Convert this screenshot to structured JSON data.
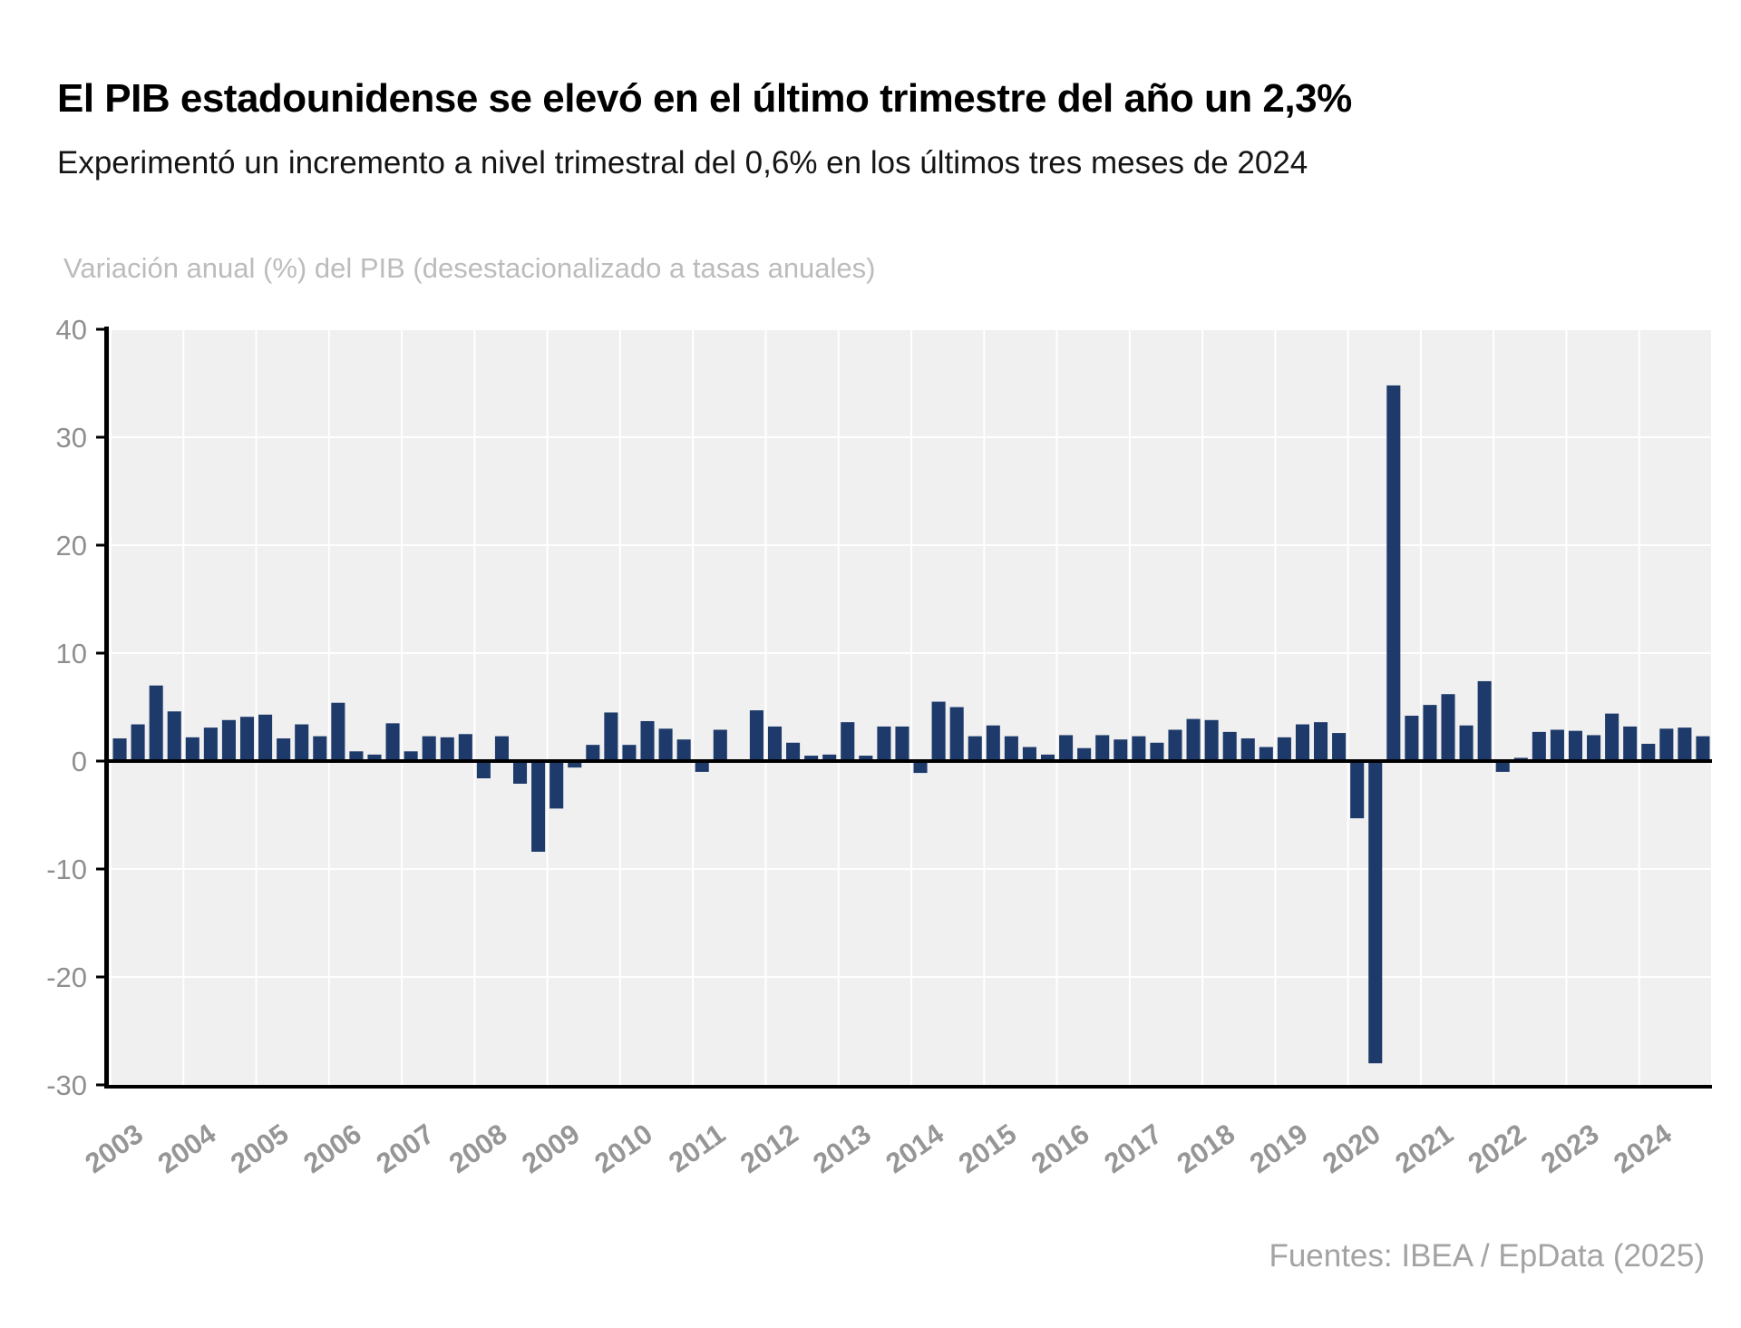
{
  "chart_data": {
    "type": "bar",
    "title": "El PIB estadounidense se elevó en el último trimestre del año un 2,3%",
    "subtitle": "Experimentó un incremento a nivel trimestral del 0,6% en los últimos tres meses de 2024",
    "axis_label": "Variación anual (%) del PIB (desestacionalizado a tasas anuales)",
    "source": "Fuentes: IBEA / EpData (2025)",
    "ylim": [
      -30,
      40
    ],
    "yticks": [
      40,
      30,
      20,
      10,
      0,
      -10,
      -20,
      -30
    ],
    "bar_color": "#1e3a6b",
    "plot_bg": "#f0f0f0",
    "grid_color": "#ffffff",
    "axis_color": "#000000",
    "ytick_label_color": "#8f8f8f",
    "xtick_label_color": "#969696",
    "years": [
      "2003",
      "2004",
      "2005",
      "2006",
      "2007",
      "2008",
      "2009",
      "2010",
      "2011",
      "2012",
      "2013",
      "2014",
      "2015",
      "2016",
      "2017",
      "2018",
      "2019",
      "2020",
      "2021",
      "2022",
      "2023",
      "2024"
    ],
    "quarters_per_year": 4,
    "values": [
      2.1,
      3.4,
      7.0,
      4.6,
      2.2,
      3.1,
      3.8,
      4.1,
      4.3,
      2.1,
      3.4,
      2.3,
      5.4,
      0.9,
      0.6,
      3.5,
      0.9,
      2.3,
      2.2,
      2.5,
      -1.6,
      2.3,
      -2.1,
      -8.4,
      -4.4,
      -0.6,
      1.5,
      4.5,
      1.5,
      3.7,
      3.0,
      2.0,
      -1.0,
      2.9,
      -0.1,
      4.7,
      3.2,
      1.7,
      0.5,
      0.6,
      3.6,
      0.5,
      3.2,
      3.2,
      -1.1,
      5.5,
      5.0,
      2.3,
      3.3,
      2.3,
      1.3,
      0.6,
      2.4,
      1.2,
      2.4,
      2.0,
      2.3,
      1.7,
      2.9,
      3.9,
      3.8,
      2.7,
      2.1,
      1.3,
      2.2,
      3.4,
      3.6,
      2.6,
      -5.3,
      -28.0,
      34.8,
      4.2,
      5.2,
      6.2,
      3.3,
      7.4,
      -1.0,
      0.3,
      2.7,
      2.9,
      2.8,
      2.4,
      4.4,
      3.2,
      1.6,
      3.0,
      3.1,
      2.3
    ]
  }
}
